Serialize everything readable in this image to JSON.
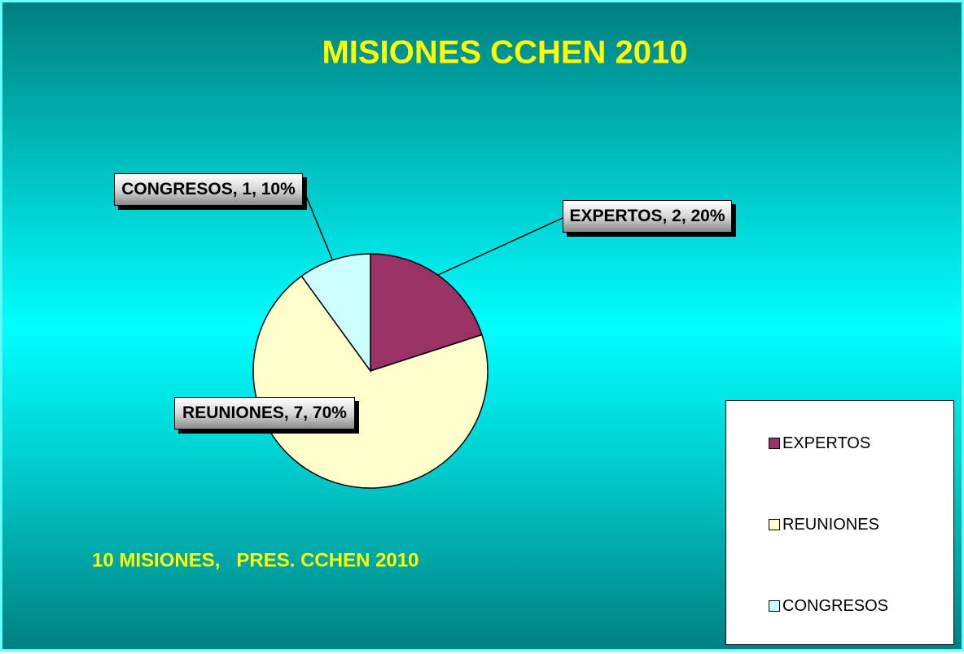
{
  "chart_data": {
    "type": "pie",
    "title": "MISIONES CCHEN 2010",
    "subtitle": "10 MISIONES,   PRES. CCHEN 2010",
    "categories": [
      "EXPERTOS",
      "REUNIONES",
      "CONGRESOS"
    ],
    "values": [
      2,
      7,
      1
    ],
    "value_labels": [
      "EXPERTOS, 2, 20%",
      "REUNIONES, 7, 70%",
      "CONGRESOS, 1, 10%"
    ],
    "colors": [
      "#993366",
      "#ffffcc",
      "#ccffff"
    ],
    "legend": "right"
  }
}
